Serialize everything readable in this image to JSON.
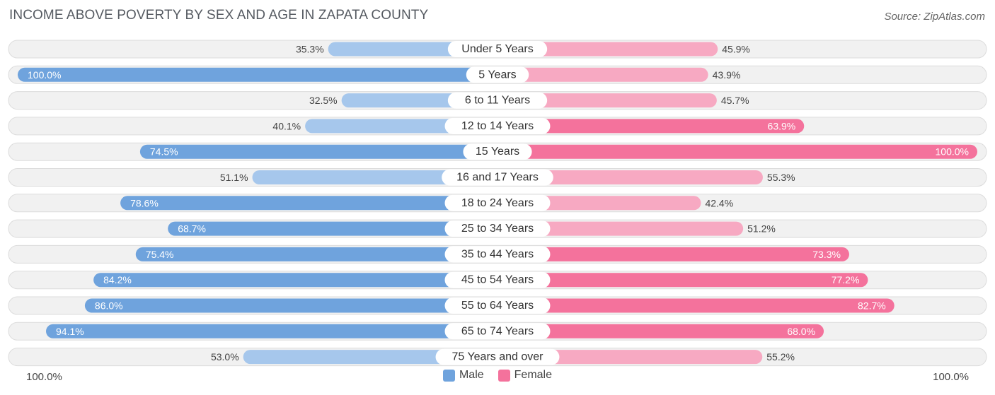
{
  "header": {
    "title": "INCOME ABOVE POVERTY BY SEX AND AGE IN ZAPATA COUNTY",
    "source": "Source: ZipAtlas.com"
  },
  "colors": {
    "male_strong": "#6fa3dd",
    "male_light": "#a6c7ec",
    "female_strong": "#f4729c",
    "female_light": "#f7a9c2",
    "track": "#eeeeee",
    "track_border": "#dcdcdc"
  },
  "chart_data": {
    "type": "bar",
    "orientation": "horizontal-diverging",
    "categories": [
      "Under 5 Years",
      "5 Years",
      "6 to 11 Years",
      "12 to 14 Years",
      "15 Years",
      "16 and 17 Years",
      "18 to 24 Years",
      "25 to 34 Years",
      "35 to 44 Years",
      "45 to 54 Years",
      "55 to 64 Years",
      "65 to 74 Years",
      "75 Years and over"
    ],
    "series": [
      {
        "name": "Male",
        "values": [
          35.3,
          100.0,
          32.5,
          40.1,
          74.5,
          51.1,
          78.6,
          68.7,
          75.4,
          84.2,
          86.0,
          94.1,
          53.0
        ],
        "labels": [
          "35.3%",
          "100.0%",
          "32.5%",
          "40.1%",
          "74.5%",
          "51.1%",
          "78.6%",
          "68.7%",
          "75.4%",
          "84.2%",
          "86.0%",
          "94.1%",
          "53.0%"
        ]
      },
      {
        "name": "Female",
        "values": [
          45.9,
          43.9,
          45.7,
          63.9,
          100.0,
          55.3,
          42.4,
          51.2,
          73.3,
          77.2,
          82.7,
          68.0,
          55.2
        ],
        "labels": [
          "45.9%",
          "43.9%",
          "45.7%",
          "63.9%",
          "100.0%",
          "55.3%",
          "42.4%",
          "51.2%",
          "73.3%",
          "77.2%",
          "82.7%",
          "68.0%",
          "55.2%"
        ]
      }
    ],
    "xlim": [
      0,
      100
    ],
    "axis_left_label": "100.0%",
    "axis_right_label": "100.0%",
    "legend_position": "bottom-center"
  }
}
